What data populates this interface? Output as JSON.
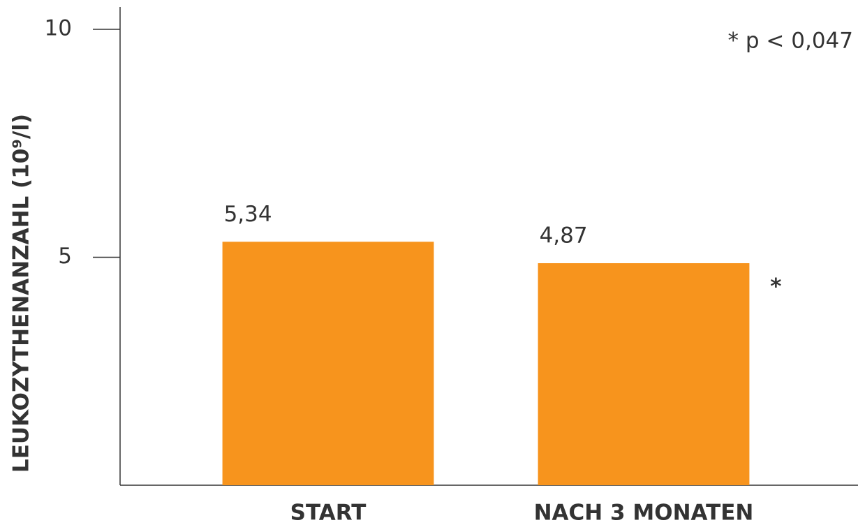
{
  "chart_data": {
    "type": "bar",
    "y_label": "LEUKOZYTHENANZAHL (10⁹/l)",
    "categories": [
      "START",
      "NACH 3 MONATEN"
    ],
    "values": [
      5.34,
      4.87
    ],
    "value_labels": [
      "5,34",
      "4,87"
    ],
    "color": "#f7941d",
    "ylim": [
      0,
      10
    ],
    "yticks": [
      5,
      10
    ],
    "significance_note": "* p < 0,047",
    "bar_marker": "*"
  }
}
